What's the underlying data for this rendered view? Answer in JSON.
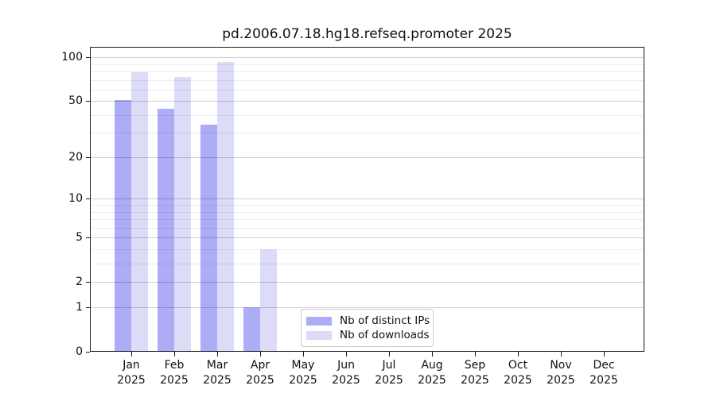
{
  "chart_data": {
    "type": "bar",
    "title": "pd.2006.07.18.hg18.refseq.promoter 2025",
    "categories": [
      "Jan",
      "Feb",
      "Mar",
      "Apr",
      "May",
      "Jun",
      "Jul",
      "Aug",
      "Sep",
      "Oct",
      "Nov",
      "Dec"
    ],
    "category_year": "2025",
    "series": [
      {
        "name": "Nb of distinct IPs",
        "color": "#adacf6",
        "values": [
          51,
          44,
          34,
          1,
          0,
          0,
          0,
          0,
          0,
          0,
          0,
          0
        ]
      },
      {
        "name": "Nb of downloads",
        "color": "#dcdbf8",
        "values": [
          79,
          73,
          93,
          4,
          0,
          0,
          0,
          0,
          0,
          0,
          0,
          0
        ]
      }
    ],
    "y_scale": "log10(value+1)",
    "y_ticks": [
      0,
      1,
      2,
      5,
      10,
      20,
      50,
      100
    ],
    "ylim": [
      0,
      118
    ],
    "grid": "horizontal, major and log-minor lines, drawn over bars",
    "legend_position": "bottom-center-inside"
  }
}
